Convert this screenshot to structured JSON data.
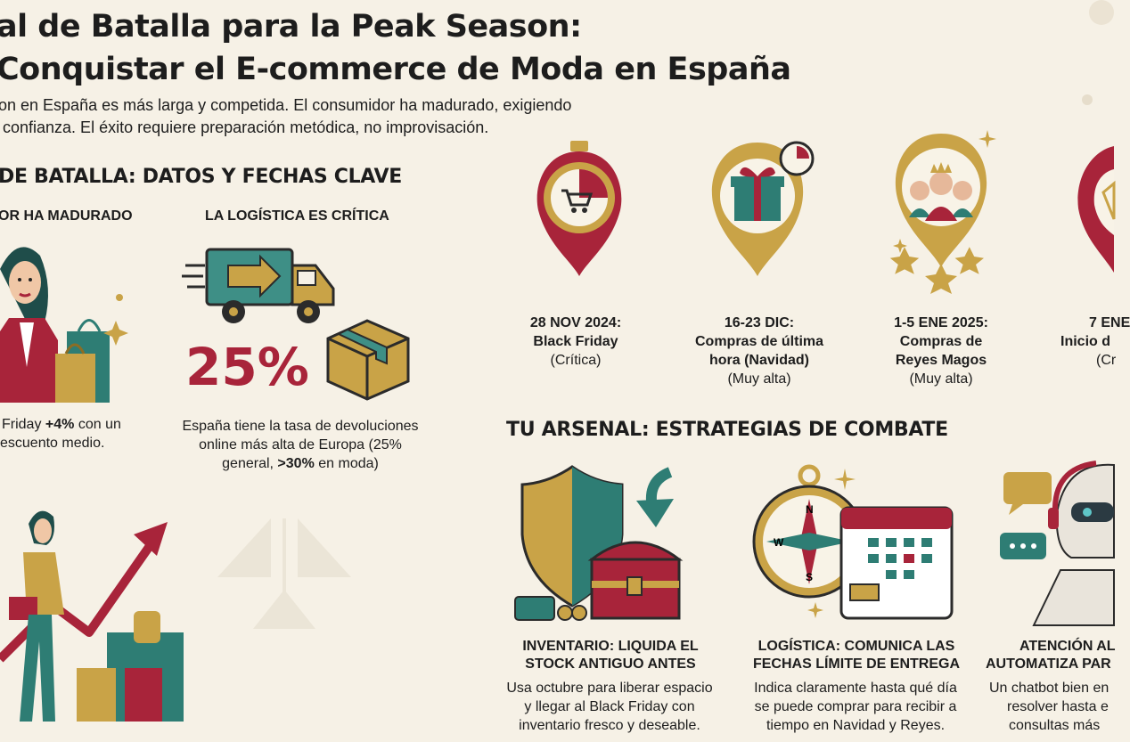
{
  "header": {
    "title_line1": "al de Batalla para la Peak Season:",
    "title_line2": "Conquistar el E-commerce de Moda en España",
    "intro": "on en España es más larga y competida. El consumidor ha madurado, exigiendo\n confianza. El éxito requiere preparación metódica, no improvisación."
  },
  "data_section": {
    "heading": "DE BATALLA: DATOS Y FECHAS CLAVE",
    "consumer": {
      "title": "OR HA MADURADO",
      "text_line1_a": "Friday ",
      "text_line1_b": "+4%",
      "text_line1_c": " con un",
      "text_line2": "escuento medio."
    },
    "logistics": {
      "title": "LA LOGÍSTICA ES CRÍTICA",
      "stat": "25%",
      "text_line1": "España tiene la tasa de devoluciones",
      "text_line2": "online más alta de Europa (25%",
      "text_line3_a": "general, ",
      "text_line3_b": ">30%",
      "text_line3_c": " en moda)"
    }
  },
  "dates": [
    {
      "title1": "28 NOV 2024:",
      "title2": "Black Friday",
      "title3": "",
      "note": "(Crítica)"
    },
    {
      "title1": "16-23 DIC:",
      "title2": "Compras de última",
      "title3": "hora (Navidad)",
      "note": "(Muy alta)"
    },
    {
      "title1": "1-5 ENE 2025:",
      "title2": "Compras de",
      "title3": "Reyes Magos",
      "note": "(Muy alta)"
    },
    {
      "title1": "7 ENE",
      "title2": "Inicio d",
      "title3": "",
      "note": "(Cr"
    }
  ],
  "arsenal": {
    "heading": "TU ARSENAL: ESTRATEGIAS DE COMBATE",
    "items": [
      {
        "title1": "INVENTARIO: LIQUIDA EL",
        "title2": "STOCK ANTIGUO ANTES",
        "body1": "Usa octubre para liberar espacio",
        "body2": "y llegar al Black Friday con",
        "body3": "inventario fresco y deseable."
      },
      {
        "title1": "LOGÍSTICA: COMUNICA LAS",
        "title2": "FECHAS LÍMITE DE ENTREGA",
        "body1": "Indica claramente hasta qué día",
        "body2": "se puede comprar para recibir a",
        "body3": "tiempo en Navidad y Reyes."
      },
      {
        "title1": "ATENCIÓN AL",
        "title2": "AUTOMATIZA PAR",
        "body1": "Un chatbot bien en",
        "body2": "resolver hasta e",
        "body3": "consultas más"
      }
    ]
  },
  "colors": {
    "crimson": "#a8243a",
    "teal": "#2e7d74",
    "gold": "#c9a347",
    "cream": "#f6f1e6"
  }
}
